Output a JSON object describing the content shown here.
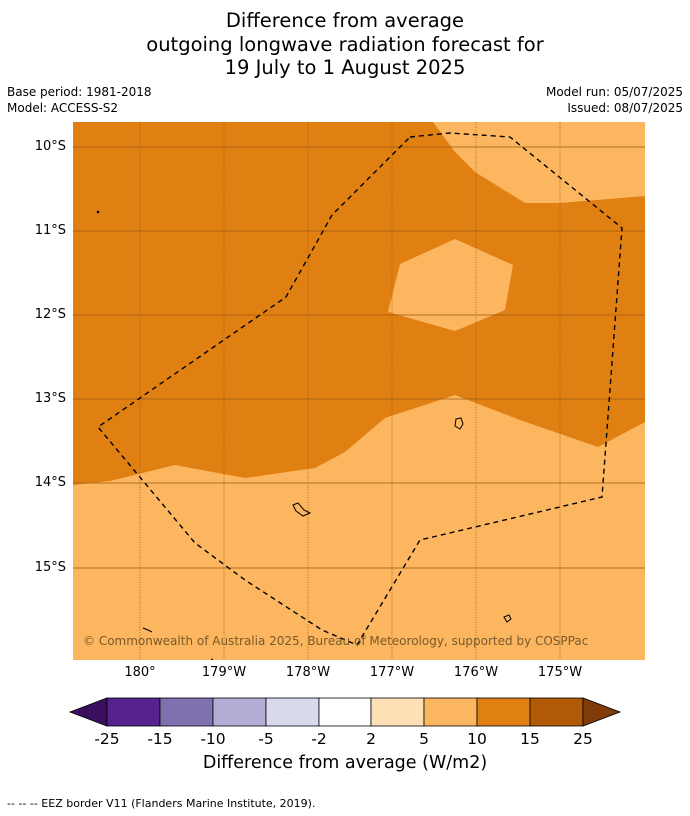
{
  "title": {
    "line1": "Difference from average",
    "line2": "outgoing longwave radiation forecast for",
    "line3": "19 July to 1 August 2025"
  },
  "meta": {
    "base_period": "Base period: 1981-2018",
    "model": "Model: ACCESS-S2",
    "model_run": "Model run: 05/07/2025",
    "issued": "Issued: 08/07/2025"
  },
  "map": {
    "lat_labels": [
      "10°S",
      "11°S",
      "12°S",
      "13°S",
      "14°S",
      "15°S"
    ],
    "lon_labels": [
      "180°",
      "179°W",
      "178°W",
      "177°W",
      "176°W",
      "175°W"
    ],
    "copyright": "© Commonwealth of Australia 2025, Bureau of Meteorology, supported by COSPPac",
    "colors": {
      "band_5_10": "#fbb65f",
      "band_10_15": "#e08013",
      "gridline": "#9a5a10"
    }
  },
  "colorbar": {
    "title": "Difference from average (W/m2)",
    "ticks": [
      "-25",
      "-15",
      "-10",
      "-5",
      "-2",
      "2",
      "5",
      "10",
      "15",
      "25"
    ],
    "colors": {
      "below": "#3b0f5e",
      "bands": [
        "#56238e",
        "#8070b0",
        "#b3acd4",
        "#d8daec",
        "#ffffff",
        "#fee0b6",
        "#fbb65f",
        "#e08013",
        "#b05a06"
      ],
      "above": "#7f3b08"
    }
  },
  "footnote": "--  --  -- EEZ border V11 (Flanders Marine Institute, 2019)."
}
